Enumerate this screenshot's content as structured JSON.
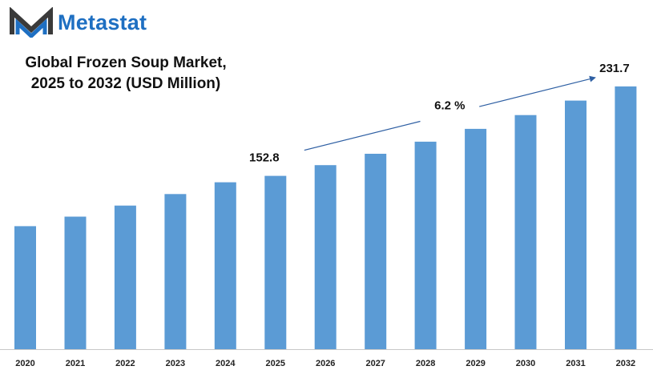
{
  "brand": {
    "name": "Metastat",
    "color": "#1e6fc2",
    "icon": "metastat-m-logo"
  },
  "chart_data": {
    "type": "bar",
    "title_lines": [
      "Global Frozen Soup Market,",
      "2025 to 2032 (USD Million)"
    ],
    "title": "Global Frozen Soup Market, 2025 to 2032 (USD Million)",
    "xlabel": "",
    "ylabel": "",
    "categories": [
      "2020",
      "2021",
      "2022",
      "2023",
      "2024",
      "2025",
      "2026",
      "2027",
      "2028",
      "2029",
      "2030",
      "2031",
      "2032"
    ],
    "values": [
      108.5,
      116.9,
      126.6,
      136.8,
      147.2,
      152.8,
      162.3,
      172.3,
      183.0,
      194.3,
      206.4,
      219.2,
      231.7
    ],
    "ylim": [
      0,
      250
    ],
    "grid": false,
    "bar_color": "#5b9bd5",
    "data_labels": [
      {
        "category": "2025",
        "text": "152.8"
      },
      {
        "category": "2032",
        "text": "231.7"
      }
    ],
    "annotation": {
      "text": "6.2 %",
      "from_category": "2025",
      "to_category": "2032",
      "arrow_color": "#2e5fa3"
    }
  }
}
